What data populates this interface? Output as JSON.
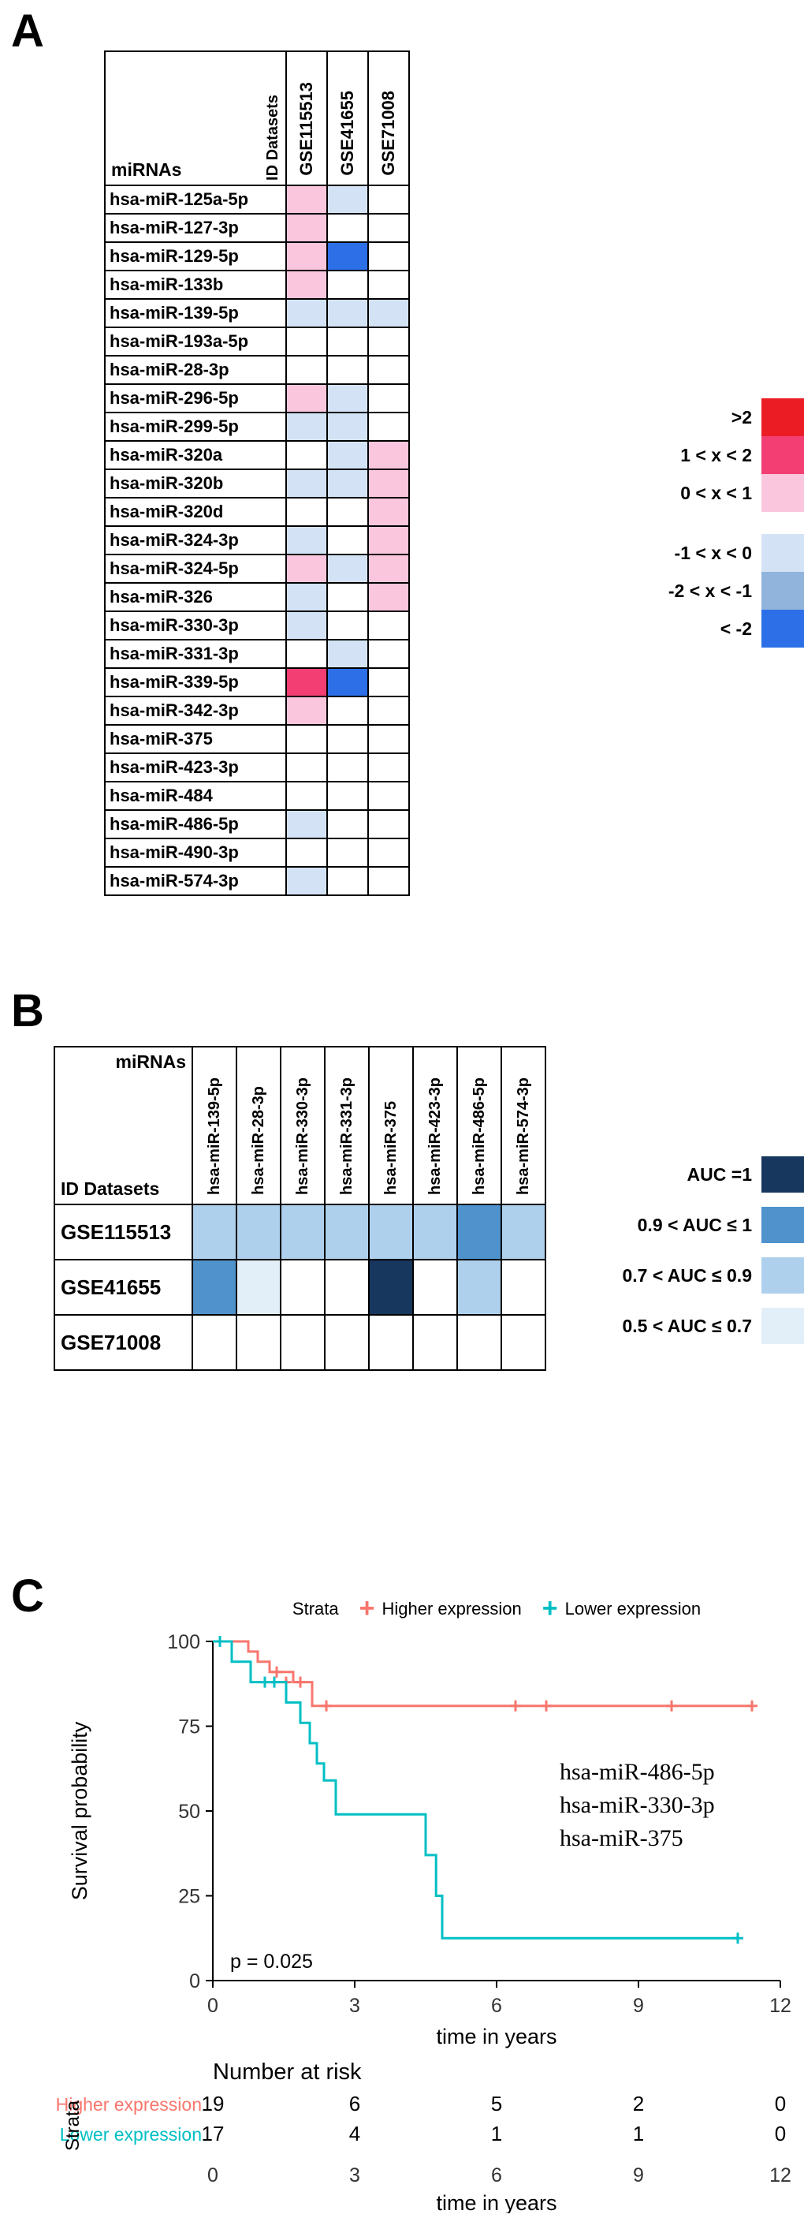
{
  "panels": {
    "a_label": "A",
    "b_label": "B",
    "c_label": "C"
  },
  "colors": {
    "expression": {
      "p3": "#ec1c24",
      "p2": "#f23e72",
      "p1": "#f9c6dd",
      "n1": "#d3e3f5",
      "n2": "#90b4dc",
      "n3": "#2c6fe6",
      "w": "#ffffff"
    },
    "auc": {
      "a1": "#17375e",
      "a2": "#4f92cc",
      "a3": "#aed0ec",
      "a4": "#e2eef8",
      "w": "#ffffff"
    }
  },
  "panelA": {
    "corner": {
      "col_header": "ID Datasets",
      "row_header": "miRNAs"
    },
    "datasets": [
      "GSE115513",
      "GSE41655",
      "GSE71008"
    ],
    "rows": [
      {
        "mirna": "hsa-miR-125a-5p",
        "values": [
          "p1",
          "n1",
          "w"
        ]
      },
      {
        "mirna": "hsa-miR-127-3p",
        "values": [
          "p1",
          "w",
          "w"
        ]
      },
      {
        "mirna": "hsa-miR-129-5p",
        "values": [
          "p1",
          "n3",
          "w"
        ]
      },
      {
        "mirna": "hsa-miR-133b",
        "values": [
          "p1",
          "w",
          "w"
        ]
      },
      {
        "mirna": "hsa-miR-139-5p",
        "values": [
          "n1",
          "n1",
          "n1"
        ]
      },
      {
        "mirna": "hsa-miR-193a-5p",
        "values": [
          "w",
          "w",
          "w"
        ]
      },
      {
        "mirna": "hsa-miR-28-3p",
        "values": [
          "w",
          "w",
          "w"
        ]
      },
      {
        "mirna": "hsa-miR-296-5p",
        "values": [
          "p1",
          "n1",
          "w"
        ]
      },
      {
        "mirna": "hsa-miR-299-5p",
        "values": [
          "n1",
          "n1",
          "w"
        ]
      },
      {
        "mirna": "hsa-miR-320a",
        "values": [
          "w",
          "n1",
          "p1"
        ]
      },
      {
        "mirna": "hsa-miR-320b",
        "values": [
          "n1",
          "n1",
          "p1"
        ]
      },
      {
        "mirna": "hsa-miR-320d",
        "values": [
          "w",
          "w",
          "p1"
        ]
      },
      {
        "mirna": "hsa-miR-324-3p",
        "values": [
          "n1",
          "w",
          "p1"
        ]
      },
      {
        "mirna": "hsa-miR-324-5p",
        "values": [
          "p1",
          "n1",
          "p1"
        ]
      },
      {
        "mirna": "hsa-miR-326",
        "values": [
          "n1",
          "w",
          "p1"
        ]
      },
      {
        "mirna": "hsa-miR-330-3p",
        "values": [
          "n1",
          "w",
          "w"
        ]
      },
      {
        "mirna": "hsa-miR-331-3p",
        "values": [
          "w",
          "n1",
          "w"
        ]
      },
      {
        "mirna": "hsa-miR-339-5p",
        "values": [
          "p2",
          "n3",
          "w"
        ]
      },
      {
        "mirna": "hsa-miR-342-3p",
        "values": [
          "p1",
          "w",
          "w"
        ]
      },
      {
        "mirna": "hsa-miR-375",
        "values": [
          "w",
          "w",
          "w"
        ]
      },
      {
        "mirna": "hsa-miR-423-3p",
        "values": [
          "w",
          "w",
          "w"
        ]
      },
      {
        "mirna": "hsa-miR-484",
        "values": [
          "w",
          "w",
          "w"
        ]
      },
      {
        "mirna": "hsa-miR-486-5p",
        "values": [
          "n1",
          "w",
          "w"
        ]
      },
      {
        "mirna": "hsa-miR-490-3p",
        "values": [
          "w",
          "w",
          "w"
        ]
      },
      {
        "mirna": "hsa-miR-574-3p",
        "values": [
          "n1",
          "w",
          "w"
        ]
      }
    ],
    "legend_groups": [
      [
        {
          "label": ">2",
          "key": "p3"
        },
        {
          "label": "1 < x < 2",
          "key": "p2"
        },
        {
          "label": "0 < x < 1",
          "key": "p1"
        }
      ],
      [
        {
          "label": "-1 < x < 0",
          "key": "n1"
        },
        {
          "label": "-2 < x < -1",
          "key": "n2"
        },
        {
          "label": "< -2",
          "key": "n3"
        }
      ]
    ]
  },
  "panelB": {
    "corner": {
      "top": "miRNAs",
      "bottom": "ID Datasets"
    },
    "mirnas": [
      "hsa-miR-139-5p",
      "hsa-miR-28-3p",
      "hsa-miR-330-3p",
      "hsa-miR-331-3p",
      "hsa-miR-375",
      "hsa-miR-423-3p",
      "hsa-miR-486-5p",
      "hsa-miR-574-3p"
    ],
    "rows": [
      {
        "dataset": "GSE115513",
        "values": [
          "a3",
          "a3",
          "a3",
          "a3",
          "a3",
          "a3",
          "a2",
          "a3"
        ]
      },
      {
        "dataset": "GSE41655",
        "values": [
          "a2",
          "a4",
          "w",
          "w",
          "a1",
          "w",
          "a3",
          "w"
        ]
      },
      {
        "dataset": "GSE71008",
        "values": [
          "w",
          "w",
          "w",
          "w",
          "w",
          "w",
          "w",
          "w"
        ]
      }
    ],
    "legend": [
      {
        "label": "AUC =1",
        "key": "a1"
      },
      {
        "label": "0.9 < AUC ≤ 1",
        "key": "a2"
      },
      {
        "label": "0.7 < AUC ≤ 0.9",
        "key": "a3"
      },
      {
        "label": "0.5 < AUC ≤ 0.7",
        "key": "a4"
      }
    ]
  },
  "chart_data": {
    "type": "line",
    "subtype": "kaplan-meier-step",
    "title": "",
    "xlabel": "time in years",
    "ylabel": "Survival probability",
    "xlim": [
      0,
      12
    ],
    "ylim": [
      0,
      100
    ],
    "xticks": [
      0,
      3,
      6,
      9,
      12
    ],
    "yticks": [
      0,
      25,
      50,
      75,
      100
    ],
    "legend_title": "Strata",
    "legend_position": "top",
    "grid": false,
    "p_value_label": "p = 0.025",
    "annotation_lines": [
      "hsa-miR-486-5p",
      "hsa-miR-330-3p",
      "hsa-miR-375"
    ],
    "series": [
      {
        "name": "Higher expression",
        "color": "#F8766D",
        "steps": [
          [
            0,
            100
          ],
          [
            0.75,
            97
          ],
          [
            0.95,
            94
          ],
          [
            1.2,
            91
          ],
          [
            1.7,
            88
          ],
          [
            2.1,
            81
          ],
          [
            11.4,
            81
          ]
        ],
        "censors": [
          [
            1.35,
            91
          ],
          [
            1.55,
            88
          ],
          [
            1.85,
            88
          ],
          [
            2.4,
            81
          ],
          [
            6.4,
            81
          ],
          [
            7.05,
            81
          ],
          [
            9.7,
            81
          ],
          [
            11.4,
            81
          ]
        ]
      },
      {
        "name": "Lower expression",
        "color": "#00BFC4",
        "steps": [
          [
            0,
            100
          ],
          [
            0.4,
            94
          ],
          [
            0.8,
            88
          ],
          [
            1.55,
            82
          ],
          [
            1.85,
            76
          ],
          [
            2.05,
            70
          ],
          [
            2.2,
            64
          ],
          [
            2.35,
            59
          ],
          [
            2.6,
            49
          ],
          [
            4.5,
            37
          ],
          [
            4.72,
            25
          ],
          [
            4.85,
            12.5
          ],
          [
            11.1,
            12.5
          ]
        ],
        "censors": [
          [
            0.15,
            100
          ],
          [
            1.1,
            88
          ],
          [
            1.3,
            88
          ],
          [
            11.1,
            12.5
          ]
        ]
      }
    ],
    "risk_table": {
      "title": "Number at risk",
      "axis_label": "Strata",
      "times": [
        0,
        3,
        6,
        9,
        12
      ],
      "rows": [
        {
          "name": "Higher expression",
          "color": "#F8766D",
          "counts": [
            19,
            6,
            5,
            2,
            0
          ]
        },
        {
          "name": "Lower expression",
          "color": "#00BFC4",
          "counts": [
            17,
            4,
            1,
            1,
            0
          ]
        }
      ],
      "xlabel": "time in years"
    }
  }
}
